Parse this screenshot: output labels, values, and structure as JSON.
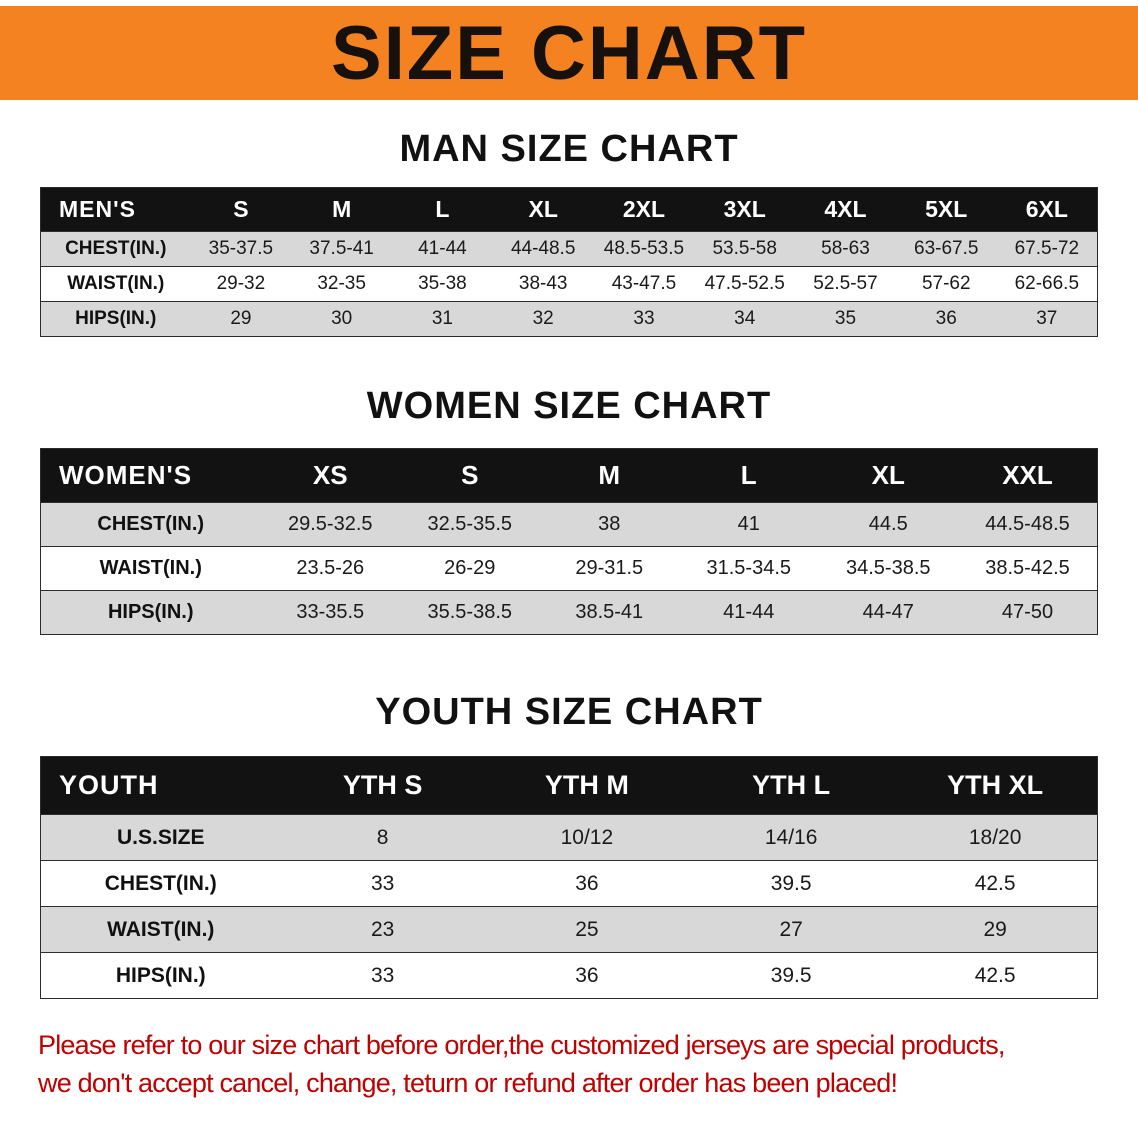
{
  "banner": {
    "title": "SIZE CHART"
  },
  "colors": {
    "banner_bg": "#F58220",
    "header_bg": "#121212",
    "stripe_bg": "#D8D8D8",
    "note_color": "#C00000"
  },
  "sections": [
    {
      "id": "men",
      "heading": "MAN SIZE CHART",
      "header": [
        "MEN'S",
        "S",
        "M",
        "L",
        "XL",
        "2XL",
        "3XL",
        "4XL",
        "5XL",
        "6XL"
      ],
      "rows": [
        [
          "CHEST(IN.)",
          "35-37.5",
          "37.5-41",
          "41-44",
          "44-48.5",
          "48.5-53.5",
          "53.5-58",
          "58-63",
          "63-67.5",
          "67.5-72"
        ],
        [
          "WAIST(IN.)",
          "29-32",
          "32-35",
          "35-38",
          "38-43",
          "43-47.5",
          "47.5-52.5",
          "52.5-57",
          "57-62",
          "62-66.5"
        ],
        [
          "HIPS(IN.)",
          "29",
          "30",
          "31",
          "32",
          "33",
          "34",
          "35",
          "36",
          "37"
        ]
      ]
    },
    {
      "id": "women",
      "heading": "WOMEN SIZE CHART",
      "header": [
        "WOMEN'S",
        "XS",
        "S",
        "M",
        "L",
        "XL",
        "XXL"
      ],
      "rows": [
        [
          "CHEST(IN.)",
          "29.5-32.5",
          "32.5-35.5",
          "38",
          "41",
          "44.5",
          "44.5-48.5"
        ],
        [
          "WAIST(IN.)",
          "23.5-26",
          "26-29",
          "29-31.5",
          "31.5-34.5",
          "34.5-38.5",
          "38.5-42.5"
        ],
        [
          "HIPS(IN.)",
          "33-35.5",
          "35.5-38.5",
          "38.5-41",
          "41-44",
          "44-47",
          "47-50"
        ]
      ]
    },
    {
      "id": "youth",
      "heading": "YOUTH SIZE CHART",
      "header": [
        "YOUTH",
        "YTH S",
        "YTH M",
        "YTH L",
        "YTH XL"
      ],
      "rows": [
        [
          "U.S.SIZE",
          "8",
          "10/12",
          "14/16",
          "18/20"
        ],
        [
          "CHEST(IN.)",
          "33",
          "36",
          "39.5",
          "42.5"
        ],
        [
          "WAIST(IN.)",
          "23",
          "25",
          "27",
          "29"
        ],
        [
          "HIPS(IN.)",
          "33",
          "36",
          "39.5",
          "42.5"
        ]
      ]
    }
  ],
  "note": {
    "line1": "Please refer to our size chart before order,the customized jerseys are special products,",
    "line2": "we don't accept cancel, change, teturn or refund after order has been placed!"
  }
}
